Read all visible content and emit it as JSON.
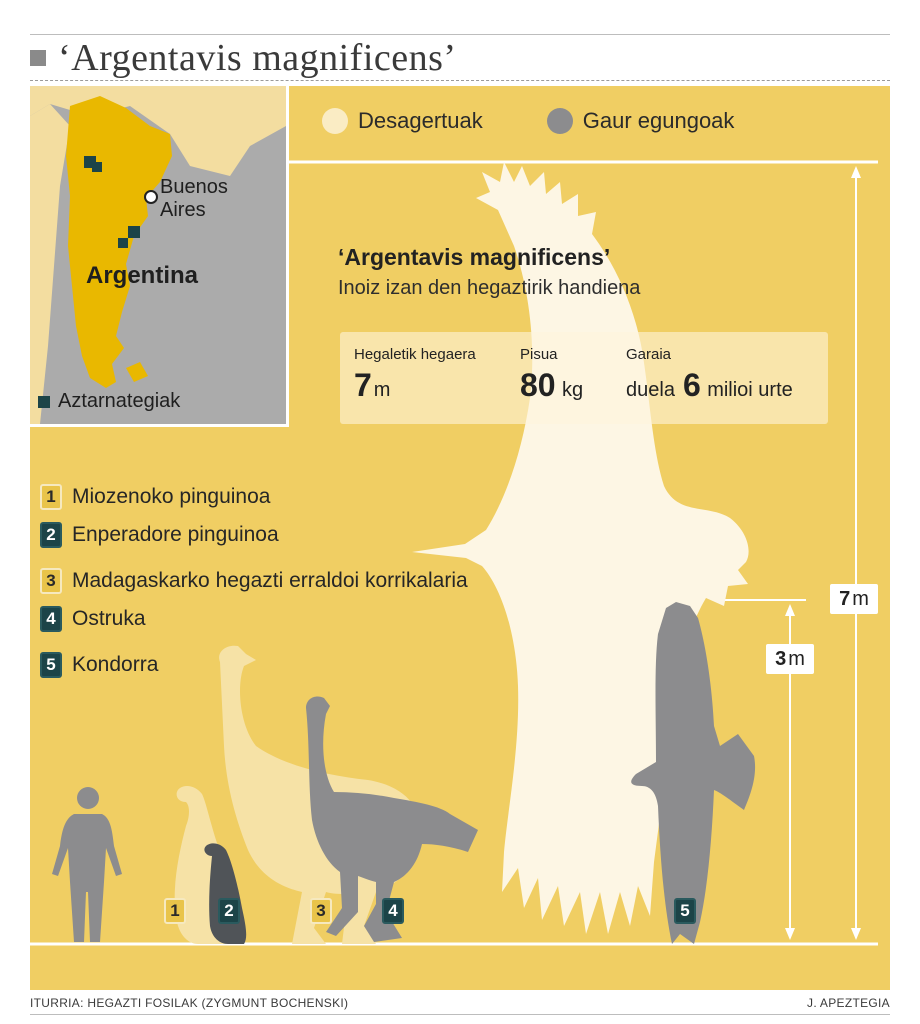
{
  "header": {
    "title": "‘Argentavis magnificens’"
  },
  "map": {
    "city": "Buenos Aires",
    "country": "Argentina",
    "legend_label": "Aztarnategiak",
    "colors": {
      "sea": "#ababab",
      "argentina": "#e9b800",
      "neighbours": "#f3dda0",
      "sites": "#1c4448"
    }
  },
  "legend": {
    "extinct_label": "Desagertuak",
    "living_label": "Gaur egungoak",
    "colors": {
      "extinct": "#faecc4",
      "living": "#8c8c8e",
      "background": "#f0ce63"
    }
  },
  "info": {
    "title": "‘Argentavis magnificens’",
    "subtitle": "Inoiz izan den hegaztirik handiena",
    "stats": [
      {
        "label": "Hegaletik hegaera",
        "prefix": "",
        "value": "7",
        "unit": "m"
      },
      {
        "label": "Pisua",
        "prefix": "",
        "value": "80",
        "unit": "kg"
      },
      {
        "label": "Garaia",
        "prefix": "duela",
        "value": "6",
        "unit": "milioi urte"
      }
    ]
  },
  "species": [
    {
      "number": "1",
      "name": "Miozenoko pinguinoa",
      "status": "extinct"
    },
    {
      "number": "2",
      "name": "Enperadore pinguinoa",
      "status": "living"
    },
    {
      "number": "3",
      "name": "Madagaskarko hegazti erraldoi korrikalaria",
      "status": "extinct"
    },
    {
      "number": "4",
      "name": "Ostruka",
      "status": "living"
    },
    {
      "number": "5",
      "name": "Kondorra",
      "status": "living"
    }
  ],
  "scale": {
    "wingspan": {
      "value": "7",
      "unit": "m"
    },
    "condor": {
      "value": "3",
      "unit": "m"
    }
  },
  "footer": {
    "source": "ITURRIA: HEGAZTI FOSILAK (ZYGMUNT BOCHENSKI)",
    "author": "J. APEZTEGIA"
  }
}
